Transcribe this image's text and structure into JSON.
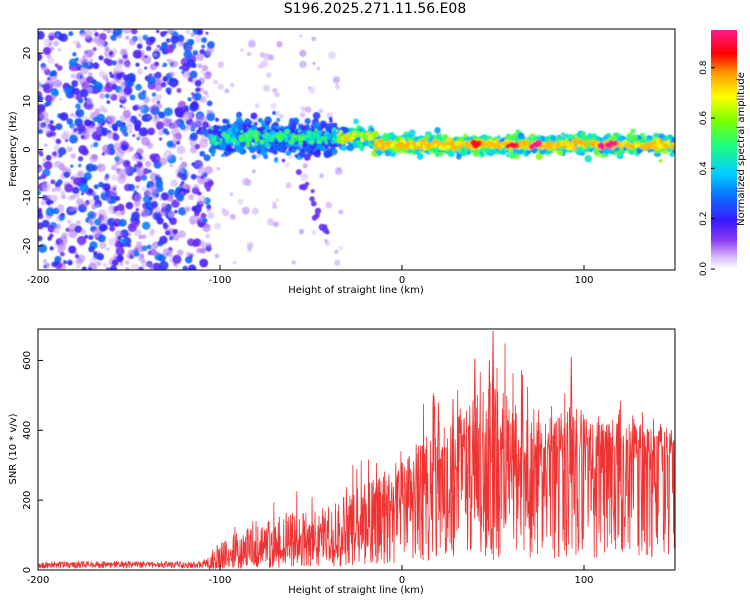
{
  "title": "S196.2025.271.11.56.E08",
  "colors": {
    "background": "#ffffff",
    "snr_line": "#ee3333",
    "axis": "#000000",
    "cmap": [
      "#ffffff",
      "#e8d8ff",
      "#b98af6",
      "#7a1fe8",
      "#3a1aff",
      "#0b6cff",
      "#00cfff",
      "#1fff7a",
      "#7aff00",
      "#ffff00",
      "#ff9900",
      "#ff0000",
      "#ff1493",
      "#ff33aa"
    ]
  },
  "chart_data": [
    {
      "type": "heatmap",
      "name": "spectrogram",
      "xlabel": "Height of straight line (km)",
      "ylabel": "Frequency (Hz)",
      "xlim": [
        -200,
        150
      ],
      "ylim": [
        -25,
        25
      ],
      "xticks": [
        -200,
        -100,
        0,
        100
      ],
      "yticks": [
        -20,
        -10,
        0,
        10,
        20
      ],
      "xticklabels": [
        "-200",
        "-100",
        "0",
        "100"
      ],
      "yticklabels": [
        "-20",
        "-10",
        "0",
        "10",
        "20"
      ],
      "features": {
        "noise_region_km": [
          -200,
          -105
        ],
        "noise_amplitude": [
          0.1,
          0.4
        ],
        "band_segments": [
          {
            "x0": -105,
            "x1": -35,
            "freq_hz": 2.5,
            "width_hz": 5,
            "amplitude": 0.3
          },
          {
            "x0": -35,
            "x1": -15,
            "freq_hz": 2.5,
            "width_hz": 3,
            "amplitude": 0.45
          },
          {
            "x0": -15,
            "x1": 150,
            "freq_hz": 1.0,
            "width_hz": 2.5,
            "amplitude": 0.55
          }
        ],
        "peak_spots": [
          {
            "x": 40,
            "freq_hz": 1,
            "amplitude": 0.85
          },
          {
            "x": 60,
            "freq_hz": 1,
            "amplitude": 0.9
          },
          {
            "x": 75,
            "freq_hz": 1,
            "amplitude": 0.95
          },
          {
            "x": 110,
            "freq_hz": 1,
            "amplitude": 0.95
          },
          {
            "x": 115,
            "freq_hz": 1,
            "amplitude": 0.95
          }
        ],
        "diagonal_streak": {
          "x0": -55,
          "y0": -5,
          "x1": -40,
          "y1": -18,
          "amplitude": 0.15
        }
      }
    },
    {
      "type": "colorbar",
      "name": "colorbar",
      "label": "Normalized spectral amplitude",
      "lim": [
        0,
        0.95
      ],
      "ticks": [
        0.0,
        0.2,
        0.4,
        0.6,
        0.8
      ],
      "ticklabels": [
        "0.0",
        "0.2",
        "0.4",
        "0.6",
        "0.8"
      ]
    },
    {
      "type": "line",
      "name": "snr",
      "xlabel": "Height of straight line (km)",
      "ylabel": "SNR (10 * v/v)",
      "xlim": [
        -200,
        150
      ],
      "ylim": [
        0,
        690
      ],
      "xticks": [
        -200,
        -100,
        0,
        100
      ],
      "yticks": [
        0,
        200,
        400,
        600
      ],
      "xticklabels": [
        "-200",
        "-100",
        "0",
        "100"
      ],
      "yticklabels": [
        "0",
        "200",
        "400",
        "600"
      ],
      "series": [
        {
          "name": "SNR",
          "envelope": {
            "x": [
              -200,
              -150,
              -110,
              -100,
              -90,
              -80,
              -70,
              -60,
              -50,
              -40,
              -30,
              -20,
              -10,
              0,
              10,
              20,
              30,
              40,
              50,
              60,
              70,
              80,
              90,
              100,
              110,
              120,
              130,
              140,
              150
            ],
            "baseline": [
              15,
              15,
              15,
              25,
              40,
              50,
              60,
              70,
              80,
              90,
              110,
              130,
              160,
              200,
              230,
              260,
              290,
              310,
              300,
              300,
              290,
              300,
              310,
              330,
              330,
              340,
              340,
              340,
              345
            ],
            "spread": [
              15,
              15,
              15,
              60,
              80,
              90,
              90,
              100,
              100,
              100,
              120,
              130,
              130,
              140,
              150,
              200,
              200,
              220,
              250,
              220,
              200,
              170,
              200,
              140,
              120,
              100,
              90,
              90,
              70
            ]
          },
          "peaks": [
            {
              "x": 50,
              "y": 685
            },
            {
              "x": 48,
              "y": 600
            },
            {
              "x": 40,
              "y": 605
            },
            {
              "x": 93,
              "y": 610
            },
            {
              "x": 28,
              "y": 490
            },
            {
              "x": 20,
              "y": 480
            }
          ]
        }
      ]
    }
  ]
}
